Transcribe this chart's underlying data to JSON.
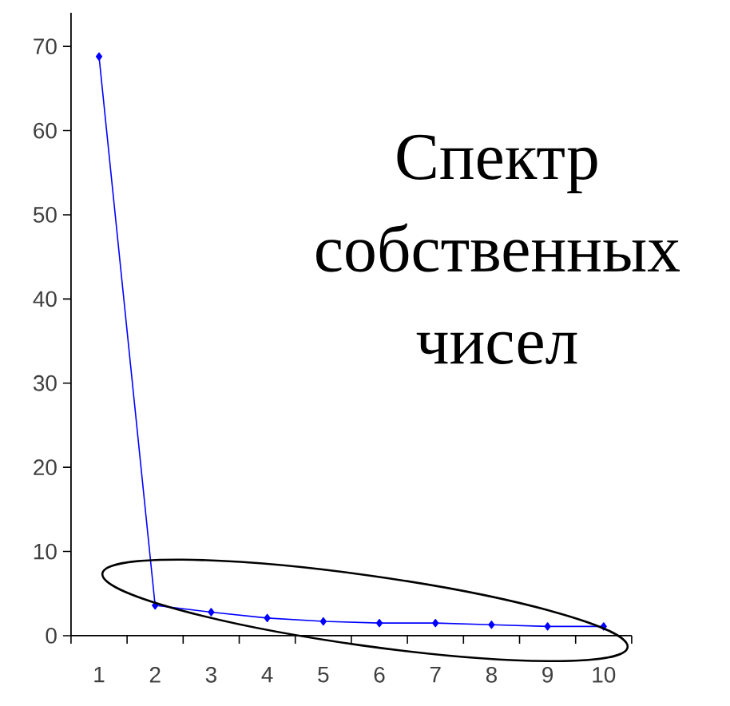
{
  "chart_data": {
    "type": "line",
    "title": "Спектр собственных чисел",
    "categories": [
      "1",
      "2",
      "3",
      "4",
      "5",
      "6",
      "7",
      "8",
      "9",
      "10"
    ],
    "values": [
      68.8,
      3.6,
      2.8,
      2.1,
      1.7,
      1.5,
      1.5,
      1.3,
      1.1,
      1.1
    ],
    "color": "#0000ff",
    "marker": "diamond",
    "line_style": "solid",
    "ylim": [
      0,
      74
    ],
    "yticks": [
      0,
      10,
      20,
      30,
      40,
      50,
      60,
      70
    ],
    "grid": false
  }
}
